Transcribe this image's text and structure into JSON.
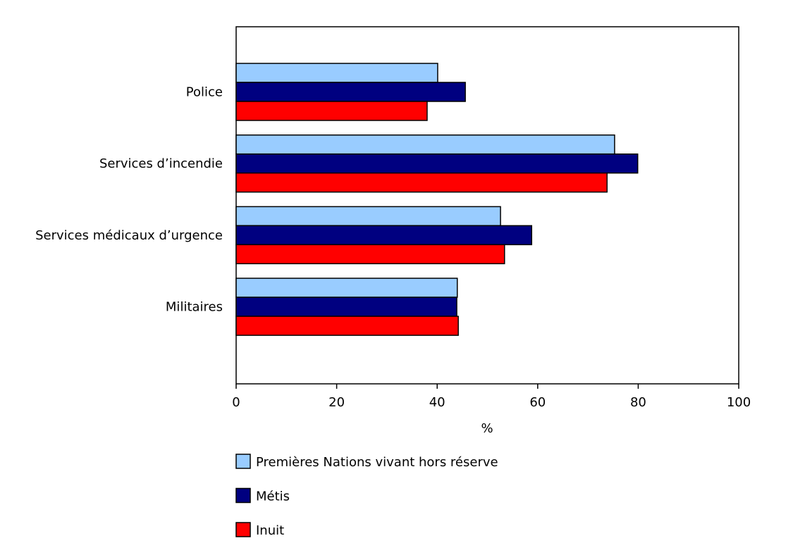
{
  "chart_data": {
    "type": "bar",
    "orientation": "horizontal",
    "categories": [
      "Police",
      "Services d’incendie",
      "Services médicaux d’urgence",
      "Militaires"
    ],
    "series": [
      {
        "name": "Premières Nations vivant hors réserve",
        "color": "#99ccff",
        "values": [
          40.1,
          75.3,
          52.6,
          44.0
        ]
      },
      {
        "name": "Métis",
        "color": "#000080",
        "values": [
          45.6,
          79.9,
          58.8,
          43.9
        ]
      },
      {
        "name": "Inuit",
        "color": "#ff0000",
        "values": [
          38.0,
          73.8,
          53.4,
          44.2
        ]
      }
    ],
    "xlabel": "%",
    "xlim": [
      0,
      100
    ],
    "xticks": [
      "0",
      "20",
      "40",
      "60",
      "80",
      "100"
    ],
    "grid": false,
    "legend_position": "bottom"
  }
}
